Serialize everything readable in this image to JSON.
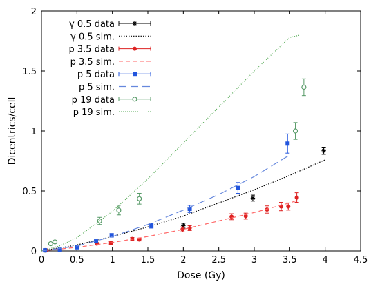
{
  "chart_data": {
    "type": "scatter",
    "xlabel": "Dose (Gy)",
    "ylabel": "Dicentrics/cell",
    "xlim": [
      0,
      4.5
    ],
    "ylim": [
      0,
      2
    ],
    "x_ticks": [
      "0",
      "0.5",
      "1",
      "1.5",
      "2",
      "2.5",
      "3",
      "3.5",
      "4",
      "4.5"
    ],
    "y_ticks": [
      "0",
      "0.5",
      "1",
      "1.5",
      "2"
    ],
    "grid": false,
    "legend_position": "top-left",
    "series": [
      {
        "name": "γ 0.5 data",
        "kind": "data",
        "color": "#000000",
        "marker": "star",
        "points": [
          [
            0.05,
            0.005,
            0.004
          ],
          [
            2.0,
            0.21,
            0.02
          ],
          [
            2.98,
            0.44,
            0.025
          ],
          [
            3.98,
            0.835,
            0.03
          ]
        ]
      },
      {
        "name": "γ 0.5 sim.",
        "kind": "sim",
        "color": "#000000",
        "dash": "1.5,2",
        "points": [
          [
            0,
            0
          ],
          [
            0.5,
            0.05
          ],
          [
            1,
            0.12
          ],
          [
            1.5,
            0.2
          ],
          [
            2,
            0.29
          ],
          [
            2.5,
            0.4
          ],
          [
            3,
            0.51
          ],
          [
            3.5,
            0.63
          ],
          [
            4,
            0.76
          ]
        ]
      },
      {
        "name": "p 3.5 data",
        "kind": "data",
        "color": "#dd2222",
        "marker": "circle",
        "points": [
          [
            0.07,
            0.005,
            0.003
          ],
          [
            0.78,
            0.06,
            0.01
          ],
          [
            0.98,
            0.065,
            0.012
          ],
          [
            1.28,
            0.1,
            0.012
          ],
          [
            1.38,
            0.095,
            0.012
          ],
          [
            1.99,
            0.18,
            0.02
          ],
          [
            2.09,
            0.19,
            0.02
          ],
          [
            2.68,
            0.285,
            0.025
          ],
          [
            2.88,
            0.29,
            0.025
          ],
          [
            3.18,
            0.345,
            0.03
          ],
          [
            3.38,
            0.37,
            0.035
          ],
          [
            3.48,
            0.37,
            0.03
          ],
          [
            3.6,
            0.445,
            0.04
          ]
        ]
      },
      {
        "name": "p 3.5 sim.",
        "kind": "sim",
        "color": "#ff6666",
        "dash": "6,4",
        "points": [
          [
            0,
            0
          ],
          [
            0.5,
            0.03
          ],
          [
            1,
            0.07
          ],
          [
            1.5,
            0.12
          ],
          [
            2,
            0.18
          ],
          [
            2.5,
            0.25
          ],
          [
            3,
            0.32
          ],
          [
            3.5,
            0.4
          ],
          [
            3.6,
            0.42
          ]
        ]
      },
      {
        "name": "p 5 data",
        "kind": "data",
        "color": "#2255dd",
        "marker": "square",
        "points": [
          [
            0.05,
            0.005,
            0.004
          ],
          [
            0.26,
            0.01,
            0.005
          ],
          [
            0.5,
            0.03,
            0.008
          ],
          [
            0.77,
            0.08,
            0.012
          ],
          [
            0.99,
            0.13,
            0.015
          ],
          [
            1.55,
            0.21,
            0.02
          ],
          [
            2.09,
            0.35,
            0.03
          ],
          [
            2.77,
            0.525,
            0.045
          ],
          [
            3.47,
            0.895,
            0.08
          ]
        ]
      },
      {
        "name": "p 5 sim.",
        "kind": "sim",
        "color": "#6688dd",
        "dash": "11,6",
        "points": [
          [
            0,
            0
          ],
          [
            0.5,
            0.04
          ],
          [
            1,
            0.12
          ],
          [
            1.5,
            0.22
          ],
          [
            2,
            0.34
          ],
          [
            2.5,
            0.47
          ],
          [
            3,
            0.62
          ],
          [
            3.5,
            0.8
          ]
        ]
      },
      {
        "name": "p 19 data",
        "kind": "data",
        "color": "#559966",
        "marker": "open-circle",
        "points": [
          [
            0.13,
            0.06,
            0.01
          ],
          [
            0.19,
            0.075,
            0.012
          ],
          [
            0.82,
            0.25,
            0.03
          ],
          [
            1.09,
            0.34,
            0.04
          ],
          [
            1.38,
            0.435,
            0.045
          ],
          [
            3.58,
            1.0,
            0.07
          ],
          [
            3.7,
            1.365,
            0.07
          ]
        ]
      },
      {
        "name": "p 19 sim.",
        "kind": "sim",
        "color": "#55aa55",
        "dash": "1,2",
        "points": [
          [
            0,
            0
          ],
          [
            0.25,
            0.04
          ],
          [
            0.5,
            0.11
          ],
          [
            1,
            0.33
          ],
          [
            1.5,
            0.6
          ],
          [
            2,
            0.9
          ],
          [
            2.5,
            1.2
          ],
          [
            3,
            1.5
          ],
          [
            3.5,
            1.78
          ],
          [
            3.65,
            1.8
          ]
        ]
      }
    ]
  }
}
